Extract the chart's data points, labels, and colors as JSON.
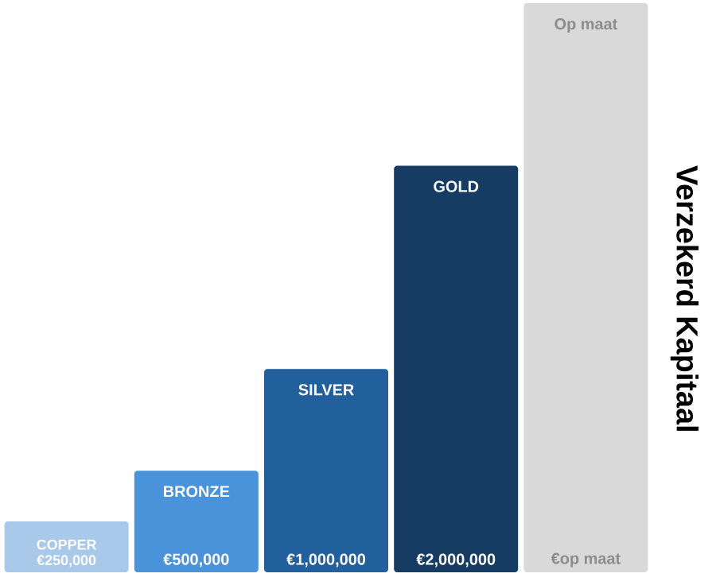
{
  "chart_data": {
    "type": "bar",
    "ylabel": "Verzekerd Kapitaal",
    "categories": [
      "COPPER",
      "BRONZE",
      "SILVER",
      "GOLD",
      "Op maat"
    ],
    "values": [
      250000,
      500000,
      1000000,
      2000000,
      2800000
    ],
    "colors": [
      "#a9c9eb",
      "#4a92da",
      "#215f9d",
      "#173c63",
      "#d9d9d9"
    ],
    "value_labels": [
      "€250,000",
      "€500,000",
      "€1,000,000",
      "€2,000,000",
      "€op maat"
    ]
  }
}
